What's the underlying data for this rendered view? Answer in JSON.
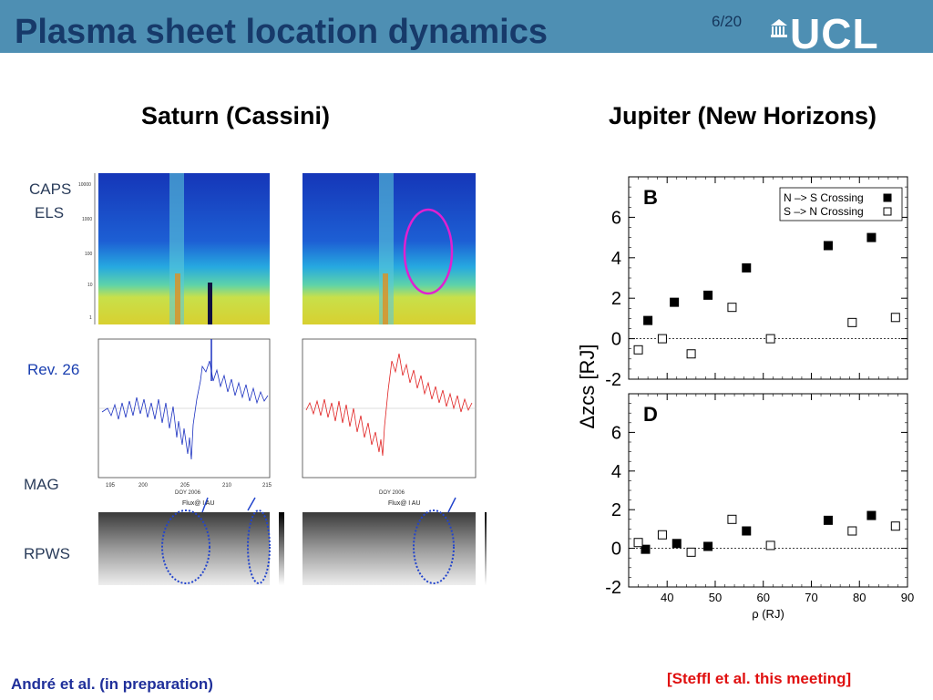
{
  "header": {
    "title": "Plasma sheet location dynamics",
    "page": "6/20",
    "logo_text": "UCL",
    "bar_color": "#4e8fb3",
    "title_color": "#173a6a"
  },
  "saturn": {
    "heading": "Saturn (Cassini)",
    "panel_labels": [
      "CAPS",
      "ELS",
      "Rev. 26",
      "MAG",
      "RPWS"
    ],
    "mag_xlabel": "DOY 2006",
    "rpws_annotation": "Flux@ I AU",
    "credit": "André et al. (in preparation)"
  },
  "jupiter": {
    "heading": "Jupiter (New Horizons)",
    "credit": "[Steffl et al. this meeting]"
  },
  "chart_data": {
    "type": "scatter",
    "xlabel": "ρ (RJ)",
    "ylabel": "Δzcs [RJ]",
    "xlim": [
      32,
      90
    ],
    "xticks": [
      40,
      50,
      60,
      70,
      80,
      90
    ],
    "legend": {
      "placement": "top-right",
      "entries": [
        "N –> S Crossing",
        "S –> N Crossing"
      ]
    },
    "panels": [
      {
        "label": "B",
        "ylim": [
          -2,
          8
        ],
        "yticks": [
          6,
          4,
          2,
          0,
          -2
        ],
        "series": [
          {
            "name": "N –> S Crossing",
            "marker": "filled-square",
            "x": [
              36,
              41.5,
              48.5,
              56.5,
              73.5,
              82.5
            ],
            "y": [
              0.9,
              1.8,
              2.15,
              3.5,
              4.6,
              5.0
            ]
          },
          {
            "name": "S –> N Crossing",
            "marker": "open-square",
            "x": [
              34,
              39,
              45,
              53.5,
              61.5,
              78.5,
              87.5
            ],
            "y": [
              -0.55,
              0.0,
              -0.75,
              1.55,
              0.0,
              0.8,
              1.05
            ]
          }
        ]
      },
      {
        "label": "D",
        "ylim": [
          -2,
          8
        ],
        "yticks": [
          6,
          4,
          2,
          0,
          -2
        ],
        "series": [
          {
            "name": "N –> S Crossing",
            "marker": "filled-square",
            "x": [
              35.5,
              42,
              48.5,
              56.5,
              73.5,
              82.5
            ],
            "y": [
              -0.05,
              0.25,
              0.1,
              0.9,
              1.45,
              1.7
            ]
          },
          {
            "name": "S –> N Crossing",
            "marker": "open-square",
            "x": [
              34,
              39,
              45,
              53.5,
              61.5,
              78.5,
              87.5
            ],
            "y": [
              0.3,
              0.7,
              -0.2,
              1.5,
              0.15,
              0.9,
              1.15
            ]
          }
        ]
      }
    ]
  }
}
